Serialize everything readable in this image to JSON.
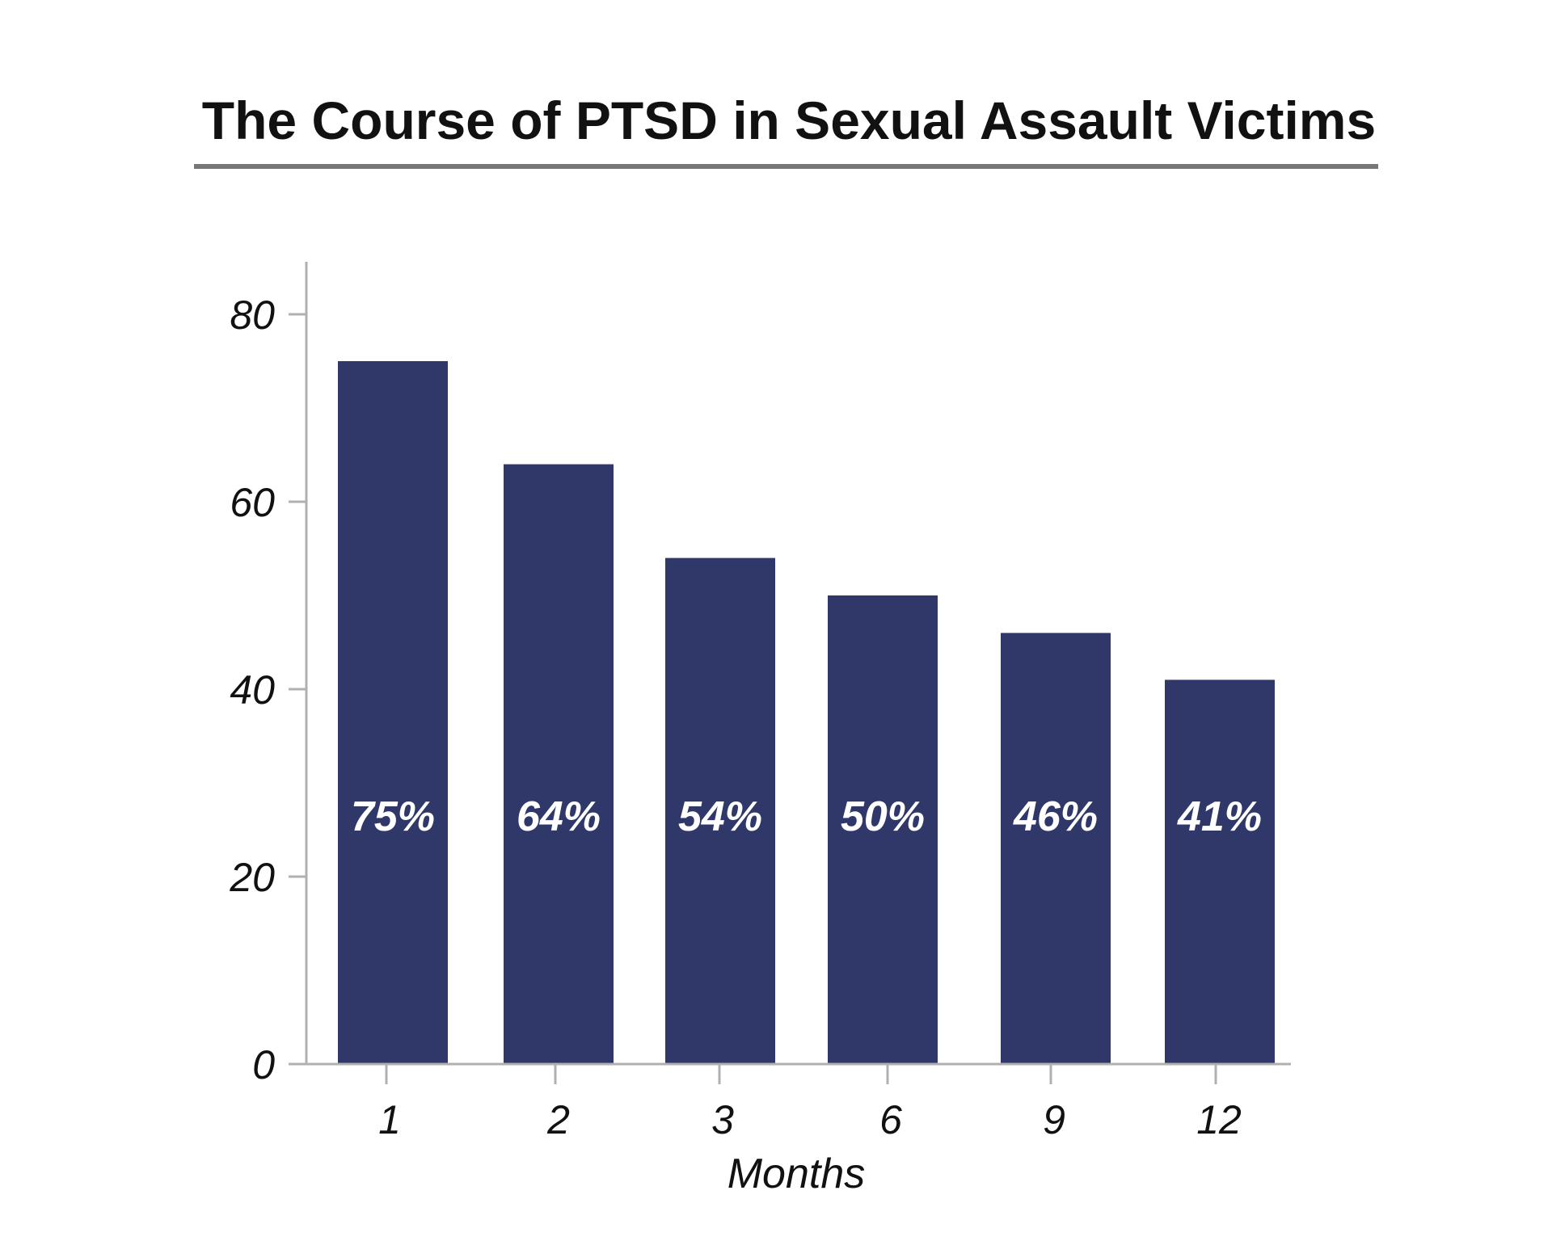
{
  "chart_data": {
    "type": "bar",
    "title": "The Course of PTSD in Sexual Assault Victims",
    "xlabel": "Months",
    "ylabel": "",
    "categories": [
      "1",
      "2",
      "3",
      "6",
      "9",
      "12"
    ],
    "values": [
      75,
      64,
      54,
      50,
      46,
      41
    ],
    "data_labels": [
      "75%",
      "64%",
      "54%",
      "50%",
      "46%",
      "41%"
    ],
    "ylim": [
      0,
      85
    ],
    "yticks": [
      "0",
      "20",
      "40",
      "60",
      "80"
    ],
    "grid": false,
    "bar_color": "#30386a",
    "axis_color": "#b0b0b0",
    "title_rule_color": "#777777"
  }
}
